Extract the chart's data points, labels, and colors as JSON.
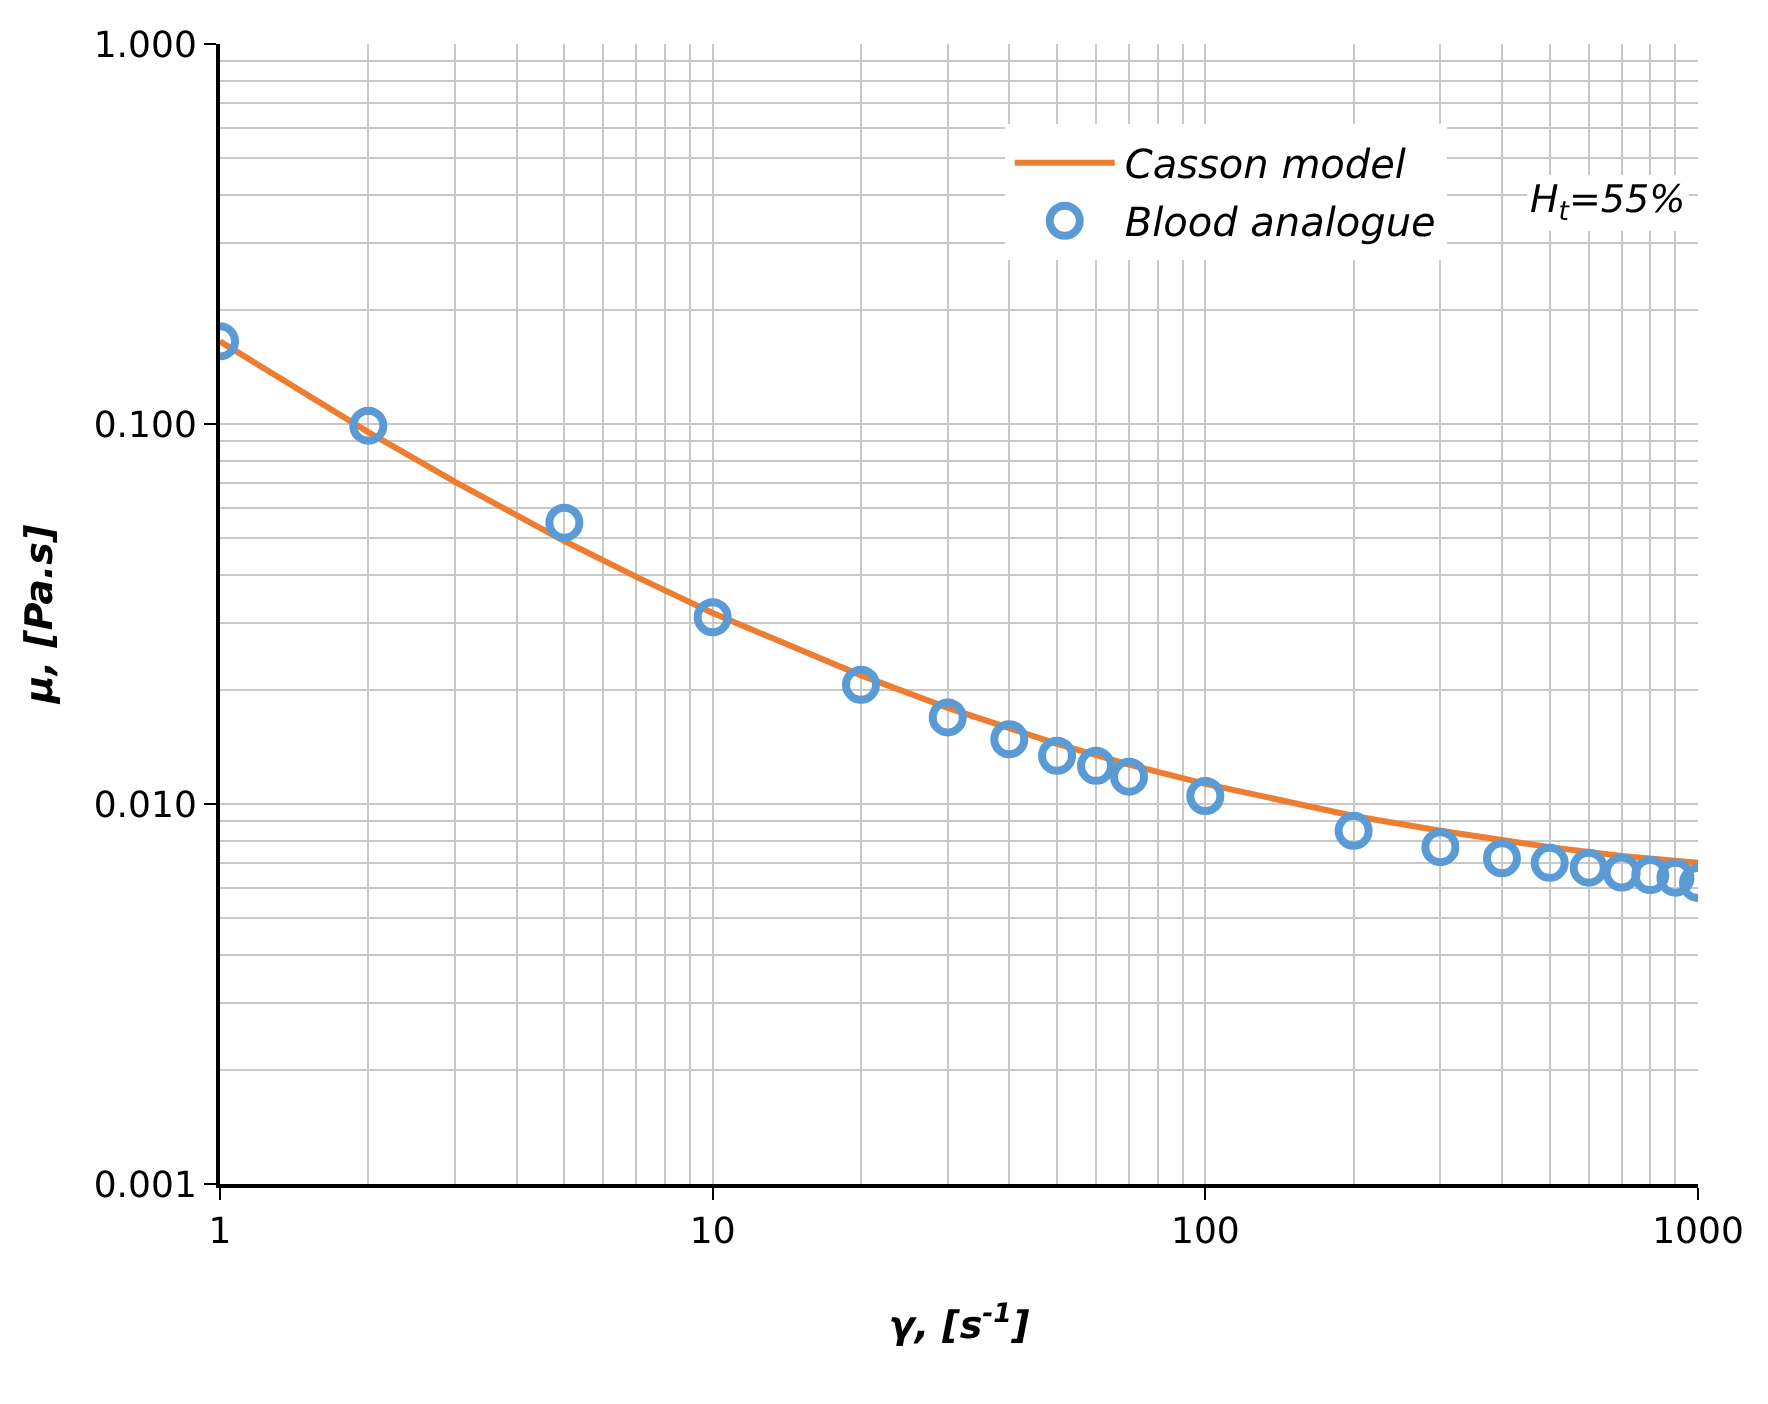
{
  "chart_data": {
    "type": "scatter",
    "xlabel": "γ, [s$^{-1}$]",
    "ylabel": "μ, [Pa.s]",
    "log": "xy",
    "grid": true,
    "legend": "top right",
    "marker": "circle",
    "annotations": [
      "H$_{t}$=55%"
    ],
    "xlim": [
      1,
      1000
    ],
    "xticks": [
      1,
      10,
      100,
      1000
    ],
    "ylim": [
      0.001,
      1
    ],
    "yticks": [
      {
        "value": 0.001,
        "label": "0.001"
      },
      {
        "value": 0.01,
        "label": "0.010"
      },
      {
        "value": 0.1,
        "label": "0.100"
      },
      {
        "value": 1,
        "label": "1.000"
      }
    ],
    "series": [
      {
        "name": "Casson model",
        "type": "line",
        "color": "#ed7d31",
        "marker": "none",
        "line_style": "solid",
        "x": [
          1,
          2,
          3,
          5,
          7,
          10,
          20,
          30,
          50,
          70,
          100,
          200,
          300,
          500,
          700,
          1000
        ],
        "values": [
          0.165,
          0.0952,
          0.0704,
          0.0492,
          0.0396,
          0.0318,
          0.0218,
          0.0179,
          0.0144,
          0.0127,
          0.0113,
          0.0093,
          0.0085,
          0.0077,
          0.0073,
          0.007
        ]
      },
      {
        "name": "Blood analogue",
        "color": "#5b9bd5",
        "x": [
          1,
          2,
          5,
          10,
          20,
          30,
          40,
          50,
          60,
          70,
          100,
          200,
          300,
          400,
          500,
          600,
          700,
          800,
          900,
          1000
        ],
        "values": [
          0.165,
          0.099,
          0.055,
          0.031,
          0.0206,
          0.0169,
          0.0148,
          0.0134,
          0.0126,
          0.0118,
          0.0105,
          0.0085,
          0.0077,
          0.0072,
          0.007,
          0.0068,
          0.0066,
          0.0065,
          0.0064,
          0.0062
        ]
      }
    ]
  }
}
